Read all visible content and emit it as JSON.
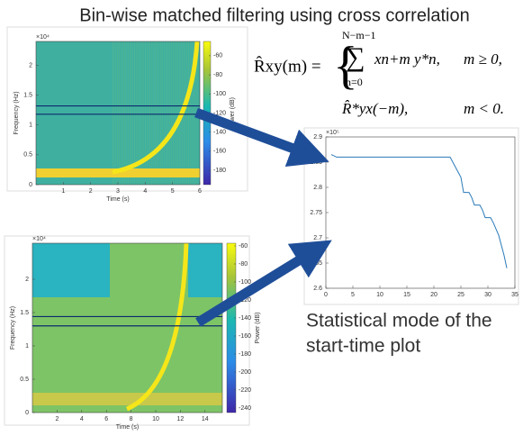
{
  "title": "Bin-wise matched filtering using cross correlation",
  "formula": {
    "lhs": "R̂xy(m) =",
    "upper_limit": "N−m−1",
    "sum": "∑",
    "lower_limit": "n=0",
    "term1": "xn+m y*n,",
    "cond1": "m ≥ 0,",
    "term2": "R̂*yx(−m),",
    "cond2": "m < 0."
  },
  "caption": [
    "Statistical mode of the",
    "start-time plot"
  ],
  "chart_data": [
    {
      "type": "heatmap",
      "exponent_label": "×10⁴",
      "xlabel": "Time (s)",
      "ylabel": "Frequency (Hz)",
      "xlim": [
        0,
        6
      ],
      "xticks": [
        1,
        2,
        3,
        4,
        5,
        6
      ],
      "ylim": [
        0,
        2.4
      ],
      "yticks": [
        0,
        0.5,
        1,
        1.5,
        2
      ],
      "colorbar": {
        "label": "Power (dB)",
        "lim": [
          -195,
          -45
        ],
        "ticks": [
          -60,
          -80,
          -100,
          -120,
          -140,
          -160,
          -180
        ]
      }
    },
    {
      "type": "heatmap",
      "exponent_label": "×10⁴",
      "xlabel": "Time (s)",
      "ylabel": "Frequency (Hz)",
      "xlim": [
        0,
        15.4
      ],
      "xticks": [
        2,
        4,
        6,
        8,
        10,
        12,
        14
      ],
      "ylim": [
        0,
        2.54
      ],
      "yticks": [
        0,
        0.5,
        1,
        1.5,
        2
      ],
      "colorbar": {
        "label": "Power (dB)",
        "lim": [
          -245,
          -57
        ],
        "ticks": [
          -60,
          -80,
          -100,
          -120,
          -140,
          -160,
          -180,
          -200,
          -220,
          -240
        ]
      }
    },
    {
      "type": "line",
      "exponent_label": "×10⁵",
      "color": "#2a7ab8",
      "xlim": [
        0,
        35
      ],
      "xticks": [
        0,
        5,
        10,
        15,
        20,
        25,
        30,
        35
      ],
      "ylim": [
        2.6,
        2.9
      ],
      "yticks": [
        2.6,
        2.65,
        2.7,
        2.75,
        2.8,
        2.85,
        2.9
      ],
      "x": [
        1,
        2,
        23,
        24,
        25,
        25.5,
        26.5,
        27,
        27.5,
        28.5,
        29,
        29.5,
        30.5,
        31,
        32,
        33,
        33.5
      ],
      "values": [
        2.865,
        2.86,
        2.86,
        2.84,
        2.82,
        2.79,
        2.79,
        2.78,
        2.765,
        2.765,
        2.755,
        2.74,
        2.74,
        2.73,
        2.705,
        2.665,
        2.64
      ]
    }
  ]
}
